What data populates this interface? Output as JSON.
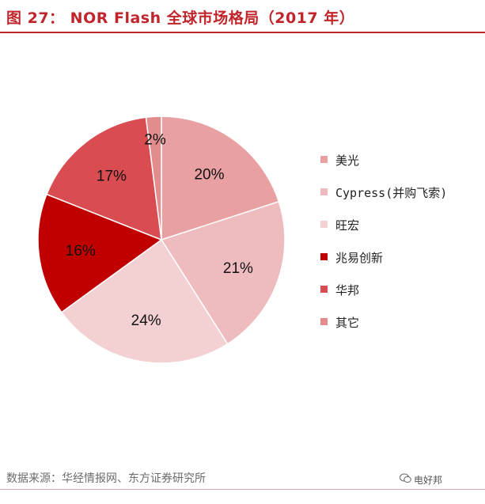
{
  "header": {
    "title": "图 27：  NOR Flash 全球市场格局（2017 年）"
  },
  "chart_data": {
    "type": "pie",
    "title": "",
    "slices": [
      {
        "label": "美光",
        "value": 20,
        "display": "20%",
        "color": "#e8a0a2"
      },
      {
        "label": "Cypress(并购飞索)",
        "value": 21,
        "display": "21%",
        "color": "#eebcbe"
      },
      {
        "label": "旺宏",
        "value": 24,
        "display": "24%",
        "color": "#f3d0d2"
      },
      {
        "label": "兆易创新",
        "value": 16,
        "display": "16%",
        "color": "#c00000"
      },
      {
        "label": "华邦",
        "value": 17,
        "display": "17%",
        "color": "#d94d52"
      },
      {
        "label": "其它",
        "value": 2,
        "display": "2%",
        "color": "#e28c8e"
      }
    ],
    "start": "top",
    "direction": "clockwise",
    "legend": "right"
  },
  "footer": {
    "source": "数据来源：华经情报网、东方证券研究所",
    "watermark": "电好邦",
    "watermark_icon": "wechat-icon"
  }
}
